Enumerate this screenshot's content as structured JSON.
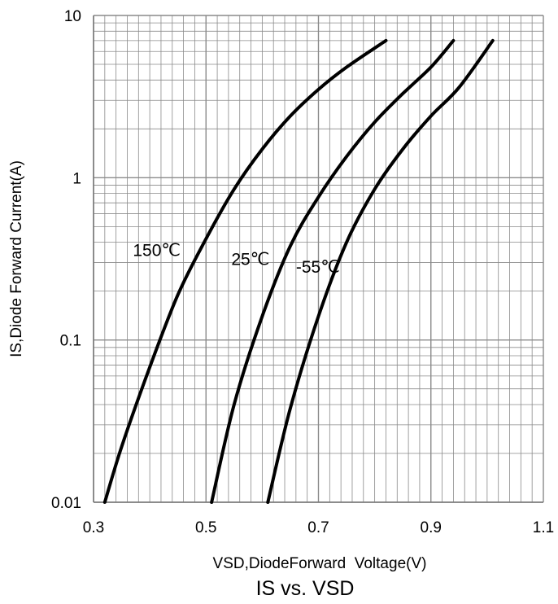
{
  "chart_data": {
    "type": "line",
    "title": "IS vs. VSD",
    "xlabel": "VSD,DiodeForward  Voltage(V)",
    "ylabel": "IS,Diode Forward Current(A)",
    "xlim": [
      0.3,
      1.1
    ],
    "ylim": [
      0.01,
      10
    ],
    "yscale": "log",
    "grid": true,
    "x_ticks": [
      0.3,
      0.5,
      0.7,
      0.9,
      1.1
    ],
    "x_tick_labels": [
      "0.3",
      "0.5",
      "0.7",
      "0.9",
      "1.1"
    ],
    "y_ticks": [
      0.01,
      0.1,
      1,
      10
    ],
    "y_tick_labels": [
      "0.01",
      "0.1",
      "1",
      "10"
    ],
    "colors": {
      "series": "#000000",
      "grid": "#8a8a8a",
      "axis": "#7a7a7a"
    },
    "series": [
      {
        "name": "150℃",
        "points": [
          [
            0.32,
            0.01
          ],
          [
            0.35,
            0.022
          ],
          [
            0.4,
            0.068
          ],
          [
            0.45,
            0.19
          ],
          [
            0.5,
            0.42
          ],
          [
            0.55,
            0.85
          ],
          [
            0.6,
            1.5
          ],
          [
            0.65,
            2.4
          ],
          [
            0.7,
            3.5
          ],
          [
            0.75,
            4.8
          ],
          [
            0.82,
            7.0
          ]
        ]
      },
      {
        "name": "25℃",
        "points": [
          [
            0.51,
            0.01
          ],
          [
            0.55,
            0.04
          ],
          [
            0.6,
            0.14
          ],
          [
            0.65,
            0.38
          ],
          [
            0.7,
            0.76
          ],
          [
            0.75,
            1.35
          ],
          [
            0.8,
            2.2
          ],
          [
            0.85,
            3.3
          ],
          [
            0.9,
            4.8
          ],
          [
            0.94,
            7.0
          ]
        ]
      },
      {
        "name": "-55℃",
        "points": [
          [
            0.61,
            0.01
          ],
          [
            0.65,
            0.038
          ],
          [
            0.7,
            0.14
          ],
          [
            0.75,
            0.4
          ],
          [
            0.8,
            0.85
          ],
          [
            0.85,
            1.5
          ],
          [
            0.9,
            2.4
          ],
          [
            0.95,
            3.6
          ],
          [
            1.01,
            7.0
          ]
        ]
      }
    ],
    "series_labels": [
      {
        "text": "150℃",
        "x": 0.37,
        "y": 0.33
      },
      {
        "text": "25℃",
        "x": 0.545,
        "y": 0.29
      },
      {
        "text": "-55℃",
        "x": 0.66,
        "y": 0.26
      }
    ]
  }
}
